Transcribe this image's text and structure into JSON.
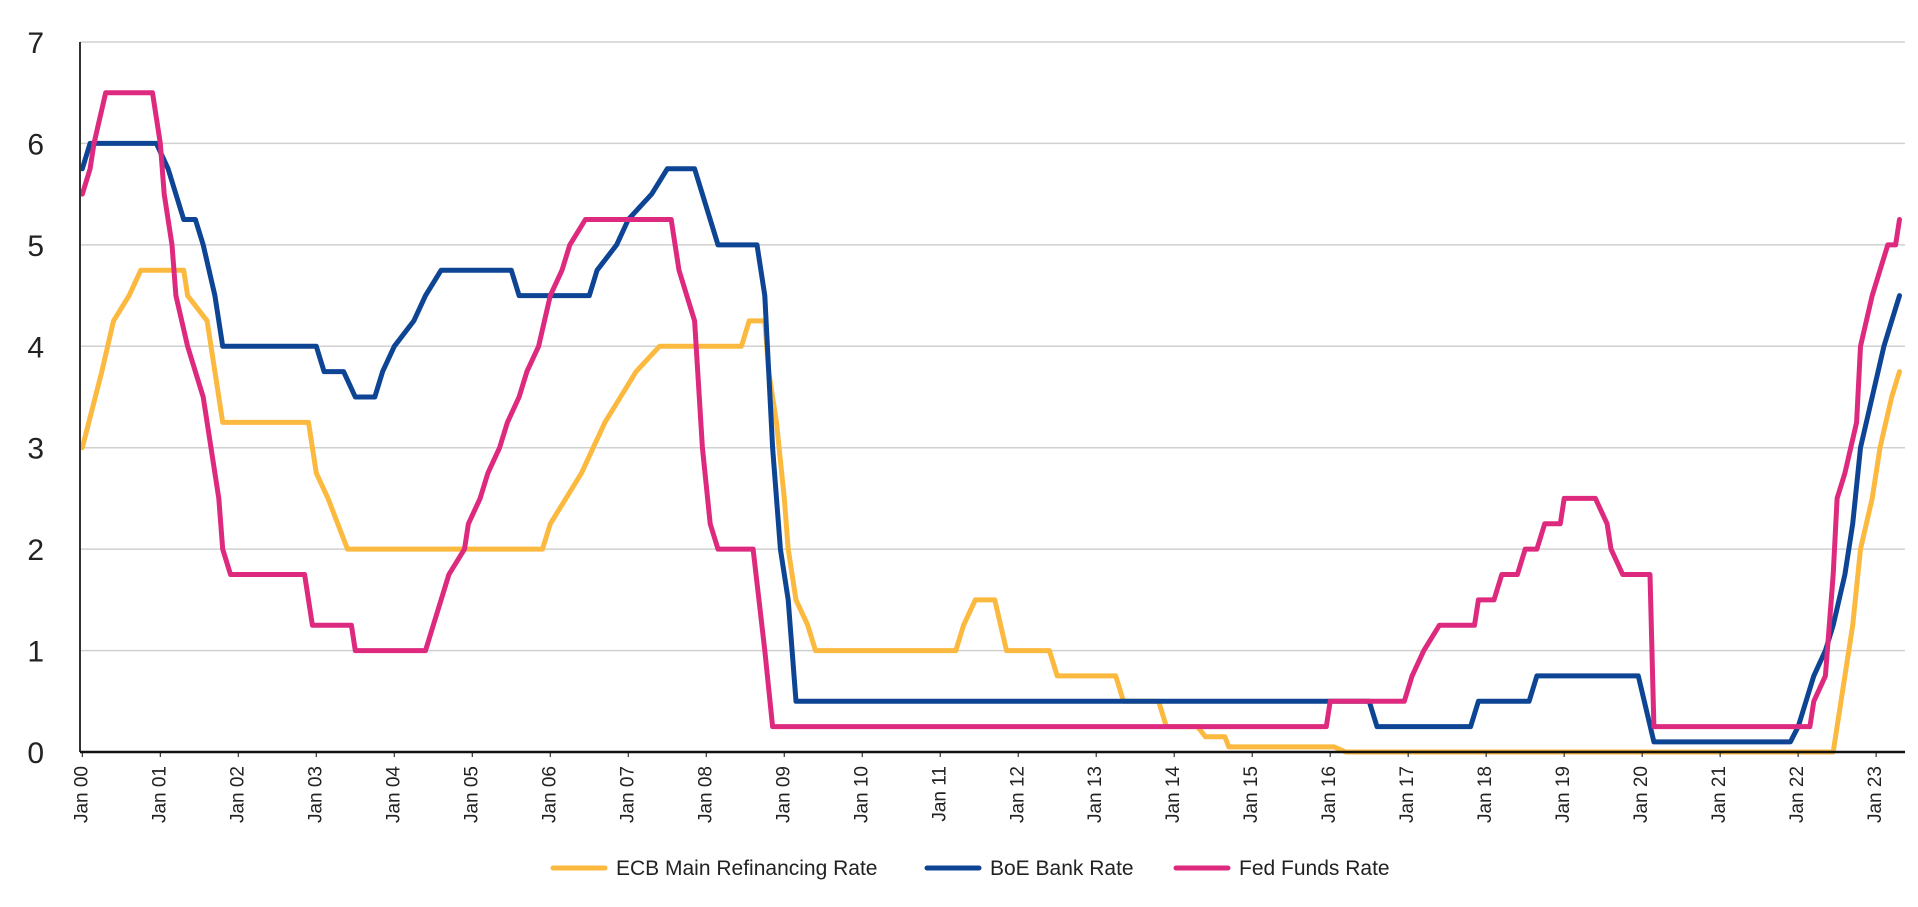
{
  "chart_data": {
    "type": "line",
    "title": "",
    "xlabel": "",
    "ylabel": "",
    "ylim": [
      0,
      7
    ],
    "yticks": [
      "0",
      "1",
      "2",
      "3",
      "4",
      "5",
      "6",
      "7"
    ],
    "xticks": [
      {
        "label": "Jan 00",
        "x": 2000.0
      },
      {
        "label": "Jan 01",
        "x": 2001.0
      },
      {
        "label": "Jan 02",
        "x": 2002.0
      },
      {
        "label": "Jan 03",
        "x": 2003.0
      },
      {
        "label": "Jan 04",
        "x": 2004.0
      },
      {
        "label": "Jan 05",
        "x": 2005.0
      },
      {
        "label": "Jan 06",
        "x": 2006.0
      },
      {
        "label": "Jan 07",
        "x": 2007.0
      },
      {
        "label": "Jan 08",
        "x": 2008.0
      },
      {
        "label": "Jan 09",
        "x": 2009.0
      },
      {
        "label": "Jan 10",
        "x": 2010.0
      },
      {
        "label": "Jan 11",
        "x": 2011.0
      },
      {
        "label": "Jan 12",
        "x": 2012.0
      },
      {
        "label": "Jan 13",
        "x": 2013.0
      },
      {
        "label": "Jan 14",
        "x": 2014.0
      },
      {
        "label": "Jan 15",
        "x": 2015.0
      },
      {
        "label": "Jan 16",
        "x": 2016.0
      },
      {
        "label": "Jan 17",
        "x": 2017.0
      },
      {
        "label": "Jan 18",
        "x": 2018.0
      },
      {
        "label": "Jan 19",
        "x": 2019.0
      },
      {
        "label": "Jan 20",
        "x": 2020.0
      },
      {
        "label": "Jan 21",
        "x": 2021.0
      },
      {
        "label": "Jan 22",
        "x": 2022.0
      },
      {
        "label": "Jan 23",
        "x": 2023.0
      }
    ],
    "grid": true,
    "legend_position": "bottom",
    "series": [
      {
        "name": "ECB Main Refinancing Rate",
        "color": "#FBBA3F",
        "points": [
          [
            2000.0,
            3.0
          ],
          [
            2000.25,
            3.75
          ],
          [
            2000.4,
            4.25
          ],
          [
            2000.6,
            4.5
          ],
          [
            2000.75,
            4.75
          ],
          [
            2001.3,
            4.75
          ],
          [
            2001.35,
            4.5
          ],
          [
            2001.6,
            4.25
          ],
          [
            2001.7,
            3.75
          ],
          [
            2001.8,
            3.25
          ],
          [
            2002.9,
            3.25
          ],
          [
            2003.0,
            2.75
          ],
          [
            2003.15,
            2.5
          ],
          [
            2003.4,
            2.0
          ],
          [
            2005.9,
            2.0
          ],
          [
            2006.0,
            2.25
          ],
          [
            2006.2,
            2.5
          ],
          [
            2006.4,
            2.75
          ],
          [
            2006.55,
            3.0
          ],
          [
            2006.7,
            3.25
          ],
          [
            2006.9,
            3.5
          ],
          [
            2007.1,
            3.75
          ],
          [
            2007.4,
            4.0
          ],
          [
            2008.45,
            4.0
          ],
          [
            2008.55,
            4.25
          ],
          [
            2008.75,
            4.25
          ],
          [
            2008.8,
            3.75
          ],
          [
            2008.9,
            3.25
          ],
          [
            2009.0,
            2.5
          ],
          [
            2009.05,
            2.0
          ],
          [
            2009.15,
            1.5
          ],
          [
            2009.3,
            1.25
          ],
          [
            2009.4,
            1.0
          ],
          [
            2011.2,
            1.0
          ],
          [
            2011.3,
            1.25
          ],
          [
            2011.45,
            1.5
          ],
          [
            2011.7,
            1.5
          ],
          [
            2011.85,
            1.0
          ],
          [
            2012.4,
            1.0
          ],
          [
            2012.5,
            0.75
          ],
          [
            2013.25,
            0.75
          ],
          [
            2013.35,
            0.5
          ],
          [
            2013.8,
            0.5
          ],
          [
            2013.9,
            0.25
          ],
          [
            2014.3,
            0.25
          ],
          [
            2014.4,
            0.15
          ],
          [
            2014.65,
            0.15
          ],
          [
            2014.7,
            0.05
          ],
          [
            2016.05,
            0.05
          ],
          [
            2016.2,
            0.0
          ],
          [
            2022.45,
            0.0
          ],
          [
            2022.55,
            0.5
          ],
          [
            2022.7,
            1.25
          ],
          [
            2022.8,
            2.0
          ],
          [
            2022.95,
            2.5
          ],
          [
            2023.05,
            3.0
          ],
          [
            2023.2,
            3.5
          ],
          [
            2023.3,
            3.75
          ]
        ]
      },
      {
        "name": "BoE Bank Rate",
        "color": "#0D4594",
        "points": [
          [
            2000.0,
            5.75
          ],
          [
            2000.1,
            6.0
          ],
          [
            2000.95,
            6.0
          ],
          [
            2001.1,
            5.75
          ],
          [
            2001.2,
            5.5
          ],
          [
            2001.3,
            5.25
          ],
          [
            2001.45,
            5.25
          ],
          [
            2001.55,
            5.0
          ],
          [
            2001.7,
            4.5
          ],
          [
            2001.8,
            4.0
          ],
          [
            2003.0,
            4.0
          ],
          [
            2003.1,
            3.75
          ],
          [
            2003.35,
            3.75
          ],
          [
            2003.5,
            3.5
          ],
          [
            2003.75,
            3.5
          ],
          [
            2003.85,
            3.75
          ],
          [
            2004.0,
            4.0
          ],
          [
            2004.25,
            4.25
          ],
          [
            2004.4,
            4.5
          ],
          [
            2004.6,
            4.75
          ],
          [
            2005.5,
            4.75
          ],
          [
            2005.6,
            4.5
          ],
          [
            2006.5,
            4.5
          ],
          [
            2006.6,
            4.75
          ],
          [
            2006.85,
            5.0
          ],
          [
            2007.0,
            5.25
          ],
          [
            2007.3,
            5.5
          ],
          [
            2007.5,
            5.75
          ],
          [
            2007.85,
            5.75
          ],
          [
            2007.95,
            5.5
          ],
          [
            2008.05,
            5.25
          ],
          [
            2008.15,
            5.0
          ],
          [
            2008.65,
            5.0
          ],
          [
            2008.75,
            4.5
          ],
          [
            2008.85,
            3.0
          ],
          [
            2008.95,
            2.0
          ],
          [
            2009.05,
            1.5
          ],
          [
            2009.15,
            0.5
          ],
          [
            2016.5,
            0.5
          ],
          [
            2016.6,
            0.25
          ],
          [
            2017.8,
            0.25
          ],
          [
            2017.9,
            0.5
          ],
          [
            2018.55,
            0.5
          ],
          [
            2018.65,
            0.75
          ],
          [
            2019.95,
            0.75
          ],
          [
            2020.15,
            0.1
          ],
          [
            2021.9,
            0.1
          ],
          [
            2022.0,
            0.25
          ],
          [
            2022.1,
            0.5
          ],
          [
            2022.2,
            0.75
          ],
          [
            2022.35,
            1.0
          ],
          [
            2022.45,
            1.25
          ],
          [
            2022.6,
            1.75
          ],
          [
            2022.7,
            2.25
          ],
          [
            2022.8,
            3.0
          ],
          [
            2022.95,
            3.5
          ],
          [
            2023.1,
            4.0
          ],
          [
            2023.2,
            4.25
          ],
          [
            2023.3,
            4.5
          ]
        ]
      },
      {
        "name": "Fed Funds Rate",
        "color": "#DE2A7E",
        "points": [
          [
            2000.0,
            5.5
          ],
          [
            2000.1,
            5.75
          ],
          [
            2000.15,
            6.0
          ],
          [
            2000.3,
            6.5
          ],
          [
            2000.9,
            6.5
          ],
          [
            2001.0,
            6.0
          ],
          [
            2001.05,
            5.5
          ],
          [
            2001.15,
            5.0
          ],
          [
            2001.2,
            4.5
          ],
          [
            2001.35,
            4.0
          ],
          [
            2001.45,
            3.75
          ],
          [
            2001.55,
            3.5
          ],
          [
            2001.65,
            3.0
          ],
          [
            2001.75,
            2.5
          ],
          [
            2001.8,
            2.0
          ],
          [
            2001.9,
            1.75
          ],
          [
            2002.85,
            1.75
          ],
          [
            2002.95,
            1.25
          ],
          [
            2003.45,
            1.25
          ],
          [
            2003.5,
            1.0
          ],
          [
            2004.4,
            1.0
          ],
          [
            2004.5,
            1.25
          ],
          [
            2004.6,
            1.5
          ],
          [
            2004.7,
            1.75
          ],
          [
            2004.9,
            2.0
          ],
          [
            2004.95,
            2.25
          ],
          [
            2005.1,
            2.5
          ],
          [
            2005.2,
            2.75
          ],
          [
            2005.35,
            3.0
          ],
          [
            2005.45,
            3.25
          ],
          [
            2005.6,
            3.5
          ],
          [
            2005.7,
            3.75
          ],
          [
            2005.85,
            4.0
          ],
          [
            2006.0,
            4.5
          ],
          [
            2006.15,
            4.75
          ],
          [
            2006.25,
            5.0
          ],
          [
            2006.45,
            5.25
          ],
          [
            2007.55,
            5.25
          ],
          [
            2007.65,
            4.75
          ],
          [
            2007.75,
            4.5
          ],
          [
            2007.85,
            4.25
          ],
          [
            2007.95,
            3.0
          ],
          [
            2008.05,
            2.25
          ],
          [
            2008.15,
            2.0
          ],
          [
            2008.6,
            2.0
          ],
          [
            2008.75,
            1.0
          ],
          [
            2008.85,
            0.25
          ],
          [
            2015.95,
            0.25
          ],
          [
            2016.0,
            0.5
          ],
          [
            2016.95,
            0.5
          ],
          [
            2017.05,
            0.75
          ],
          [
            2017.2,
            1.0
          ],
          [
            2017.4,
            1.25
          ],
          [
            2017.85,
            1.25
          ],
          [
            2017.9,
            1.5
          ],
          [
            2018.1,
            1.5
          ],
          [
            2018.2,
            1.75
          ],
          [
            2018.4,
            1.75
          ],
          [
            2018.5,
            2.0
          ],
          [
            2018.65,
            2.0
          ],
          [
            2018.75,
            2.25
          ],
          [
            2018.95,
            2.25
          ],
          [
            2019.0,
            2.5
          ],
          [
            2019.4,
            2.5
          ],
          [
            2019.55,
            2.25
          ],
          [
            2019.6,
            2.0
          ],
          [
            2019.75,
            1.75
          ],
          [
            2020.1,
            1.75
          ],
          [
            2020.15,
            0.25
          ],
          [
            2022.15,
            0.25
          ],
          [
            2022.2,
            0.5
          ],
          [
            2022.35,
            0.75
          ],
          [
            2022.45,
            1.75
          ],
          [
            2022.5,
            2.5
          ],
          [
            2022.6,
            2.75
          ],
          [
            2022.75,
            3.25
          ],
          [
            2022.8,
            4.0
          ],
          [
            2022.95,
            4.5
          ],
          [
            2023.05,
            4.75
          ],
          [
            2023.15,
            5.0
          ],
          [
            2023.25,
            5.0
          ],
          [
            2023.3,
            5.25
          ]
        ]
      }
    ]
  }
}
